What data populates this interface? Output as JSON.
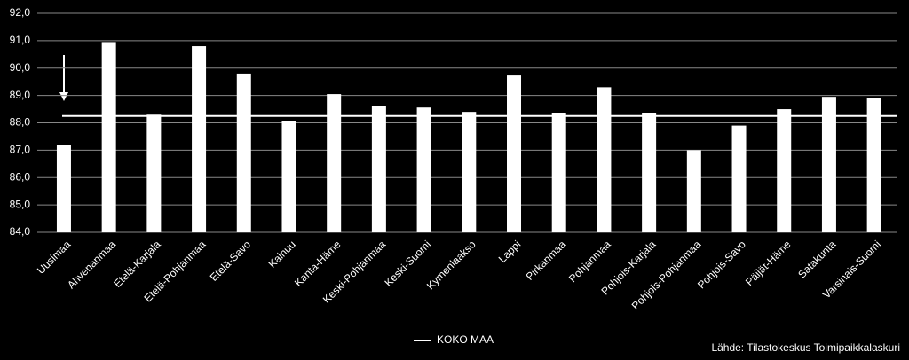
{
  "chart_data": {
    "type": "bar",
    "categories": [
      "Uusimaa",
      "Ahvenanmaa",
      "Etelä-Karjala",
      "Etelä-Pohjanmaa",
      "Etelä-Savo",
      "Kainuu",
      "Kanta-Häme",
      "Keski-Pohjanmaa",
      "Keski-Suomi",
      "Kymenlaakso",
      "Lappi",
      "Pirkanmaa",
      "Pohjanmaa",
      "Pohjois-Karjala",
      "Pohjois-Pohjanmaa",
      "Pohjois-Savo",
      "Päijät-Häme",
      "Satakunta",
      "Varsinais-Suomi"
    ],
    "values": [
      87.2,
      90.95,
      88.3,
      90.8,
      89.8,
      88.05,
      89.05,
      88.63,
      88.56,
      88.4,
      89.73,
      88.37,
      89.3,
      88.34,
      87.0,
      87.9,
      88.5,
      88.95,
      88.92
    ],
    "color": "#ffffff",
    "reference_line": {
      "name": "KOKO MAA",
      "value": 88.25,
      "color": "#ffffff"
    },
    "ylim": [
      84,
      92
    ],
    "yticks": [
      {
        "value": 84,
        "label": "84,0"
      },
      {
        "value": 85,
        "label": "85,0"
      },
      {
        "value": 86,
        "label": "86,0"
      },
      {
        "value": 87,
        "label": "87,0"
      },
      {
        "value": 88,
        "label": "88,0"
      },
      {
        "value": 89,
        "label": "89,0"
      },
      {
        "value": 90,
        "label": "90,0"
      },
      {
        "value": 91,
        "label": "91,0"
      },
      {
        "value": 92,
        "label": "92,0"
      }
    ],
    "grid": true,
    "source": "Lähde: Tilastokeskus Toimipaikkalaskuri"
  }
}
